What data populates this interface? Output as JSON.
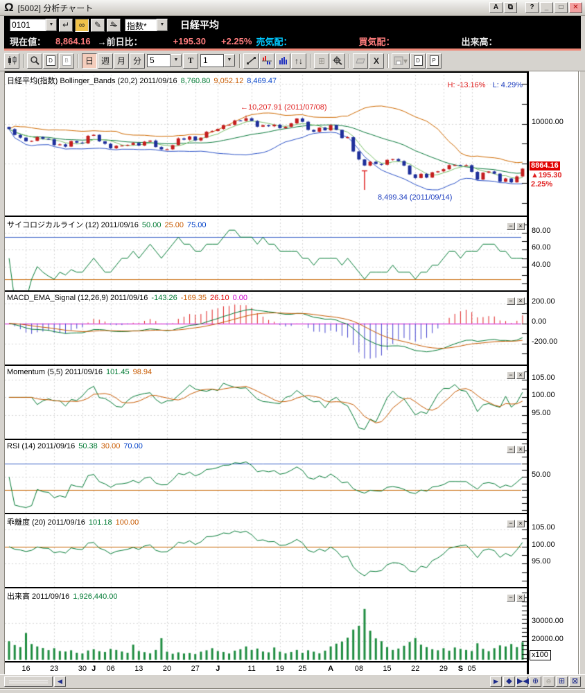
{
  "window": {
    "title": "[5002] 分析チャート",
    "buttons": {
      "a": "A",
      "help": "?"
    }
  },
  "symbol_bar": {
    "code": "0101",
    "category": "指数*",
    "name": "日経平均"
  },
  "quote_bar": {
    "label_current": "現在値：",
    "current": "8,864.16",
    "label_change": "→前日比：",
    "change": "+195.30",
    "change_pct": "+2.25%",
    "label_ask": "売気配：",
    "label_bid": "買気配：",
    "label_volume": "出来高："
  },
  "toolbar": {
    "period_day": "日",
    "period_week": "週",
    "period_month": "月",
    "period_minute": "分",
    "span_value": "5",
    "text_tool": "T",
    "interval_value": "1",
    "delete_label": "X"
  },
  "panels": [
    {
      "title": "日経平均(指数) Bollinger_Bands (20,2) 2011/09/16",
      "vals": [
        {
          "t": "8,760.80",
          "c": "green"
        },
        {
          "t": "9,052.12",
          "c": "orange"
        },
        {
          "t": "8,469.47",
          "c": "blue"
        }
      ]
    },
    {
      "title": "サイコロジカルライン (12) 2011/09/16",
      "vals": [
        {
          "t": "50.00",
          "c": "green"
        },
        {
          "t": "25.00",
          "c": "orange"
        },
        {
          "t": "75.00",
          "c": "blue"
        }
      ]
    },
    {
      "title": "MACD_EMA_Signal (12,26,9) 2011/09/16",
      "vals": [
        {
          "t": "-143.26",
          "c": "green"
        },
        {
          "t": "-169.35",
          "c": "orange"
        },
        {
          "t": "26.10",
          "c": "red"
        },
        {
          "t": "0.00",
          "c": "magenta"
        }
      ]
    },
    {
      "title": "Momentum (5,5) 2011/09/16",
      "vals": [
        {
          "t": "101.45",
          "c": "green"
        },
        {
          "t": "98.94",
          "c": "orange"
        }
      ]
    },
    {
      "title": "RSI (14) 2011/09/16",
      "vals": [
        {
          "t": "50.38",
          "c": "green"
        },
        {
          "t": "30.00",
          "c": "orange"
        },
        {
          "t": "70.00",
          "c": "blue"
        }
      ]
    },
    {
      "title": "乖離度 (20) 2011/09/16",
      "vals": [
        {
          "t": "101.18",
          "c": "green"
        },
        {
          "t": "100.00",
          "c": "orange"
        }
      ]
    },
    {
      "title": "出来高 2011/09/16",
      "vals": [
        {
          "t": "1,926,440.00",
          "c": "green"
        }
      ]
    }
  ],
  "annotations": {
    "high_label": "10,207.91 (2011/07/08)",
    "low_label": "8,499.34 (2011/09/14)",
    "high_pct": "H: -13.16%",
    "low_pct": "L: 4.29%"
  },
  "price_badge": {
    "price": "8864.16",
    "change": "195.30",
    "pct": "2.25%"
  },
  "volume_multiplier": "x100",
  "chart_data": {
    "type": "candlestick-multi-panel",
    "first_open": 9920,
    "close": [
      9864,
      9716,
      9648,
      9558,
      9567,
      9662,
      9620,
      9607,
      9460,
      9477,
      9422,
      9562,
      9522,
      9504,
      9694,
      9719,
      9555,
      9492,
      9380,
      9442,
      9449,
      9467,
      9514,
      9448,
      9547,
      9574,
      9411,
      9351,
      9354,
      9459,
      9629,
      9597,
      9678,
      9578,
      9648,
      9797,
      9816,
      9868,
      9965,
      9972,
      10082,
      10071,
      10137.73,
      10069,
      9925,
      9963,
      9936,
      9974,
      9889,
      9923,
      10010,
      10132,
      10050,
      9844,
      9797,
      9901,
      9833,
      9965,
      9844,
      9637,
      9659,
      9299,
      9097,
      8944,
      9038,
      8982,
      8963,
      9086,
      9107,
      9057,
      8943,
      8719,
      8628,
      8733,
      8639,
      8772,
      8797,
      8851,
      8953,
      8955,
      8950,
      8951,
      8784,
      8590,
      8763,
      8793,
      8737,
      8535,
      8616,
      8518,
      8668,
      8864.16
    ],
    "volume": [
      19800,
      17600,
      16400,
      24500,
      18200,
      16800,
      15900,
      14700,
      15800,
      14200,
      13900,
      14600,
      13200,
      12800,
      14500,
      15200,
      14100,
      13600,
      15400,
      14800,
      13900,
      13200,
      17800,
      14200,
      13500,
      12900,
      14800,
      21500,
      13800,
      12600,
      13400,
      12800,
      13100,
      12400,
      13800,
      14600,
      15800,
      14200,
      13600,
      12800,
      14400,
      15200,
      16800,
      14800,
      15600,
      13900,
      13400,
      16200,
      13800,
      12900,
      13600,
      14800,
      13200,
      14600,
      13800,
      12900,
      14400,
      16800,
      18400,
      19600,
      21800,
      26400,
      28600,
      38200,
      25800,
      21400,
      19800,
      16400,
      14800,
      15600,
      17200,
      19400,
      21600,
      17800,
      16400,
      15200,
      14600,
      15800,
      14400,
      16200,
      15400,
      14800,
      14200,
      18600,
      15400,
      14100,
      15800,
      17400,
      16800,
      18200,
      16400,
      19264
    ],
    "high_overrides": {
      "42": 10207.91
    },
    "low_overrides": {
      "89": 8499.34
    },
    "mark": {
      "index": 63,
      "from": 8810,
      "to": 8330
    },
    "xticks": [
      {
        "i": 3,
        "t": "16"
      },
      {
        "i": 8,
        "t": "23"
      },
      {
        "i": 13,
        "t": "30"
      },
      {
        "i": 15,
        "t": "J",
        "bold": true
      },
      {
        "i": 18,
        "t": "06"
      },
      {
        "i": 23,
        "t": "13"
      },
      {
        "i": 28,
        "t": "20"
      },
      {
        "i": 33,
        "t": "27"
      },
      {
        "i": 37,
        "t": "J",
        "bold": true
      },
      {
        "i": 43,
        "t": "11"
      },
      {
        "i": 48,
        "t": "19"
      },
      {
        "i": 52,
        "t": "25"
      },
      {
        "i": 57,
        "t": "A",
        "bold": true
      },
      {
        "i": 62,
        "t": "08"
      },
      {
        "i": 67,
        "t": "15"
      },
      {
        "i": 72,
        "t": "22"
      },
      {
        "i": 77,
        "t": "29"
      },
      {
        "i": 80,
        "t": "S",
        "bold": true
      },
      {
        "i": 82,
        "t": "05"
      }
    ],
    "panels_cfg": [
      {
        "key": "main",
        "range": [
          7750,
          11200
        ],
        "hgrid": [
          9000,
          10000,
          11000
        ],
        "ylabels": [
          {
            "v": 10000,
            "t": "10000.00"
          }
        ],
        "minor": 500,
        "th": []
      },
      {
        "key": "psy",
        "range": [
          15,
          95
        ],
        "hgrid": [
          40,
          60,
          80
        ],
        "ylabels": [
          {
            "v": 80,
            "t": "80.00"
          },
          {
            "v": 60,
            "t": "60.00"
          },
          {
            "v": 40,
            "t": "40.00"
          }
        ],
        "minor": 10,
        "th": [
          {
            "v": 75,
            "c": "blue"
          },
          {
            "v": 25,
            "c": "orange"
          }
        ]
      },
      {
        "key": "macd",
        "range": [
          -380,
          280
        ],
        "hgrid": [
          200,
          -200
        ],
        "ylabels": [
          {
            "v": 200,
            "t": "200.00"
          },
          {
            "v": 0,
            "t": "0.00"
          },
          {
            "v": -200,
            "t": "-200.00"
          }
        ],
        "minor": 100,
        "th": [
          {
            "v": 0,
            "c": "magenta"
          }
        ]
      },
      {
        "key": "mom",
        "range": [
          89,
          108
        ],
        "hgrid": [
          95,
          100,
          105
        ],
        "ylabels": [
          {
            "v": 105,
            "t": "105.00"
          },
          {
            "v": 100,
            "t": "100.00"
          },
          {
            "v": 95,
            "t": "95.00"
          }
        ],
        "minor": 2.5,
        "th": []
      },
      {
        "key": "rsi",
        "range": [
          0,
          100
        ],
        "hgrid": [
          50
        ],
        "ylabels": [
          {
            "v": 50,
            "t": "50.00"
          }
        ],
        "minor": 10,
        "th": [
          {
            "v": 70,
            "c": "blue"
          },
          {
            "v": 30,
            "c": "orange"
          }
        ]
      },
      {
        "key": "kairi",
        "range": [
          89,
          108.5
        ],
        "hgrid": [
          95,
          100,
          105
        ],
        "ylabels": [
          {
            "v": 105,
            "t": "105.00"
          },
          {
            "v": 100,
            "t": "100.00"
          },
          {
            "v": 95,
            "t": "95.00"
          }
        ],
        "minor": 2.5,
        "th": [
          {
            "v": 100,
            "c": "orange"
          }
        ]
      },
      {
        "key": "vol",
        "range": [
          10000,
          48000
        ],
        "hgrid": [
          20000,
          30000
        ],
        "ylabels": [
          {
            "v": 30000,
            "t": "30000.00"
          },
          {
            "v": 20000,
            "t": "20000.00"
          }
        ],
        "minor": 2500,
        "th": []
      }
    ],
    "colors": {
      "green": "#007a33",
      "orange": "#c85a00",
      "blue": "#0040c8",
      "red": "#e00000",
      "magenta": "#cc00cc",
      "up_candle": "#c41e1e",
      "down_candle": "#1e2f9b",
      "boll_upper": "#d06a00",
      "boll_mid": "#0a7a3c",
      "boll_lower": "#2b52c8",
      "sma_fast": "#79c26a",
      "hist_pos": "#e02020",
      "hist_neg": "#4343d0",
      "volume_bar": "#1d8c3f",
      "grid": "#d6d6d6",
      "badge_bg": "#e00000"
    },
    "current_price": 8864.16
  }
}
